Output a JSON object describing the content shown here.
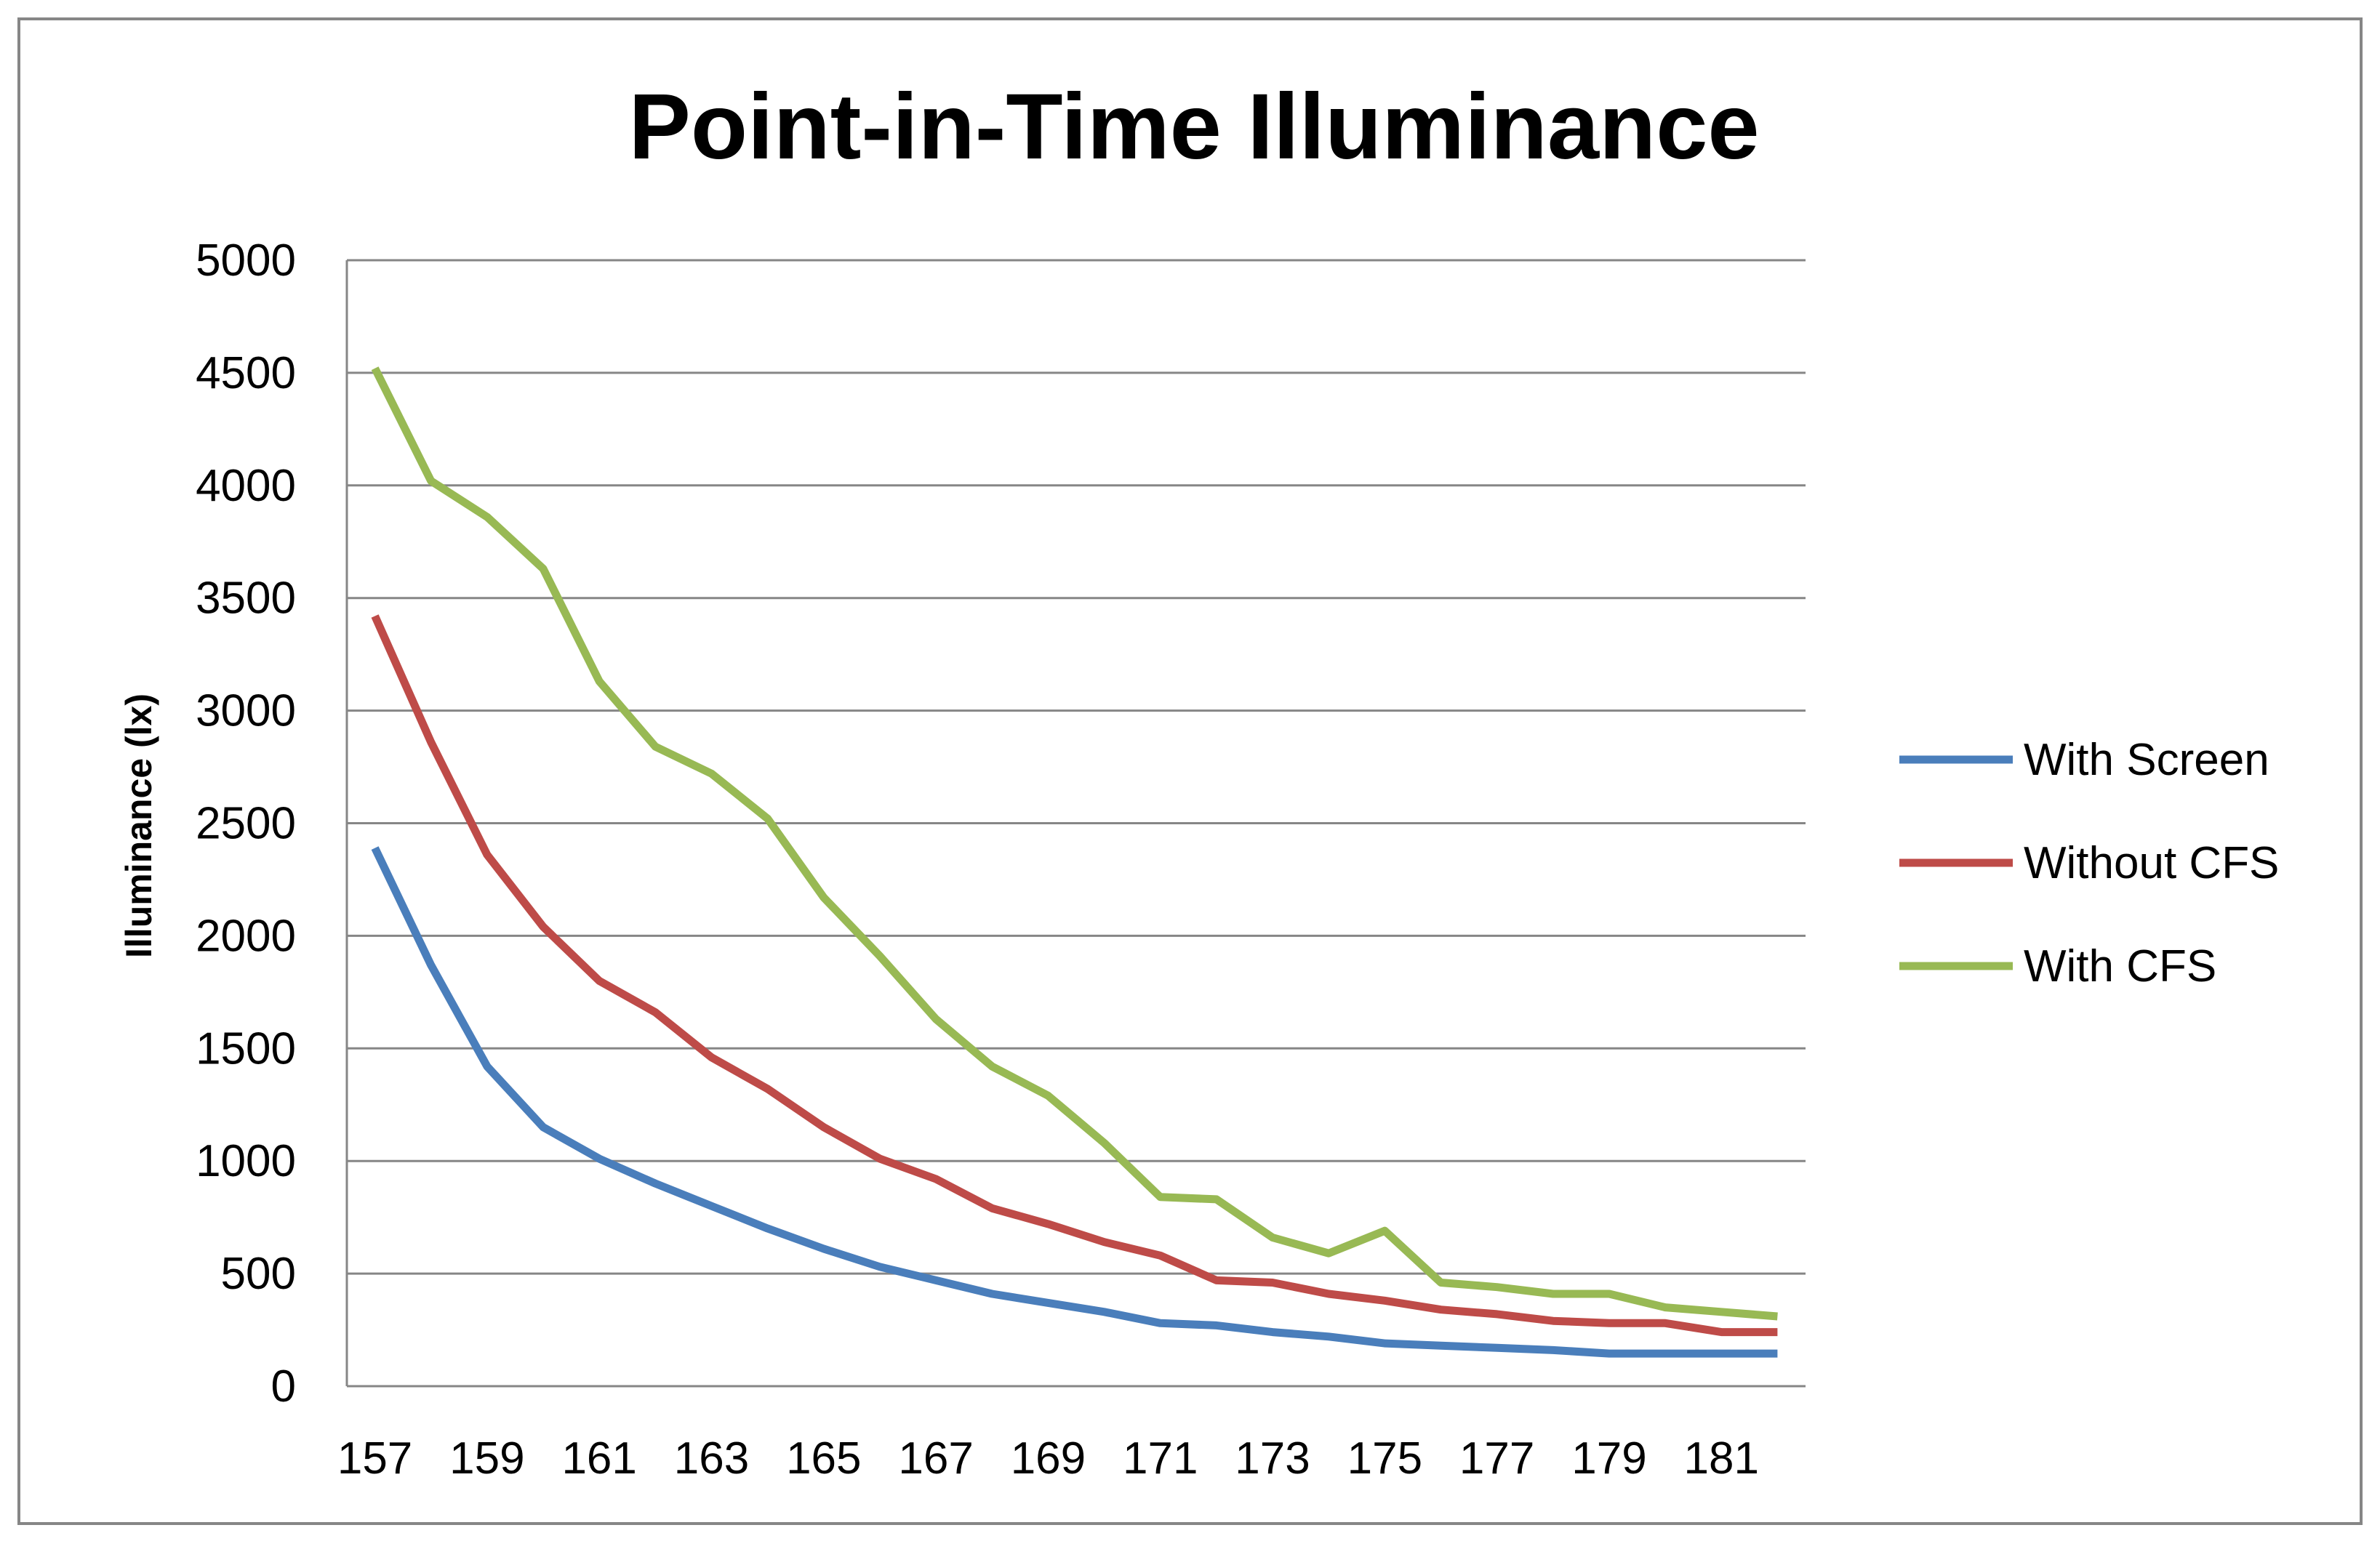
{
  "chart_data": {
    "type": "line",
    "title": "Point-in-Time Illuminance",
    "xlabel": "",
    "ylabel": "Illuminance (lx)",
    "ylim": [
      0,
      5000
    ],
    "yticks": [
      0,
      500,
      1000,
      1500,
      2000,
      2500,
      3000,
      3500,
      4000,
      4500,
      5000
    ],
    "x": [
      157,
      158,
      159,
      160,
      161,
      162,
      163,
      164,
      165,
      166,
      167,
      168,
      169,
      170,
      171,
      172,
      173,
      174,
      175,
      176,
      177,
      178,
      179,
      180,
      181,
      182
    ],
    "xtick_labels": [
      "157",
      "159",
      "161",
      "163",
      "165",
      "167",
      "169",
      "171",
      "173",
      "175",
      "177",
      "179",
      "181"
    ],
    "grid": "horizontal",
    "legend_position": "right",
    "series": [
      {
        "name": "With Screen",
        "color": "#4a7ebb",
        "values": [
          2390,
          1870,
          1420,
          1150,
          1010,
          900,
          800,
          700,
          610,
          530,
          470,
          410,
          370,
          330,
          280,
          270,
          240,
          220,
          190,
          180,
          170,
          160,
          145,
          145,
          145,
          145
        ]
      },
      {
        "name": "Without CFS",
        "color": "#be4b48",
        "values": [
          3420,
          2860,
          2360,
          2040,
          1800,
          1660,
          1460,
          1320,
          1150,
          1010,
          920,
          790,
          720,
          640,
          580,
          470,
          460,
          410,
          380,
          340,
          320,
          290,
          280,
          280,
          240,
          240
        ]
      },
      {
        "name": "With CFS",
        "color": "#98b954",
        "values": [
          4520,
          4020,
          3860,
          3630,
          3130,
          2840,
          2720,
          2520,
          2170,
          1910,
          1630,
          1420,
          1290,
          1080,
          840,
          830,
          660,
          590,
          690,
          460,
          440,
          410,
          410,
          350,
          330,
          310
        ]
      }
    ]
  }
}
